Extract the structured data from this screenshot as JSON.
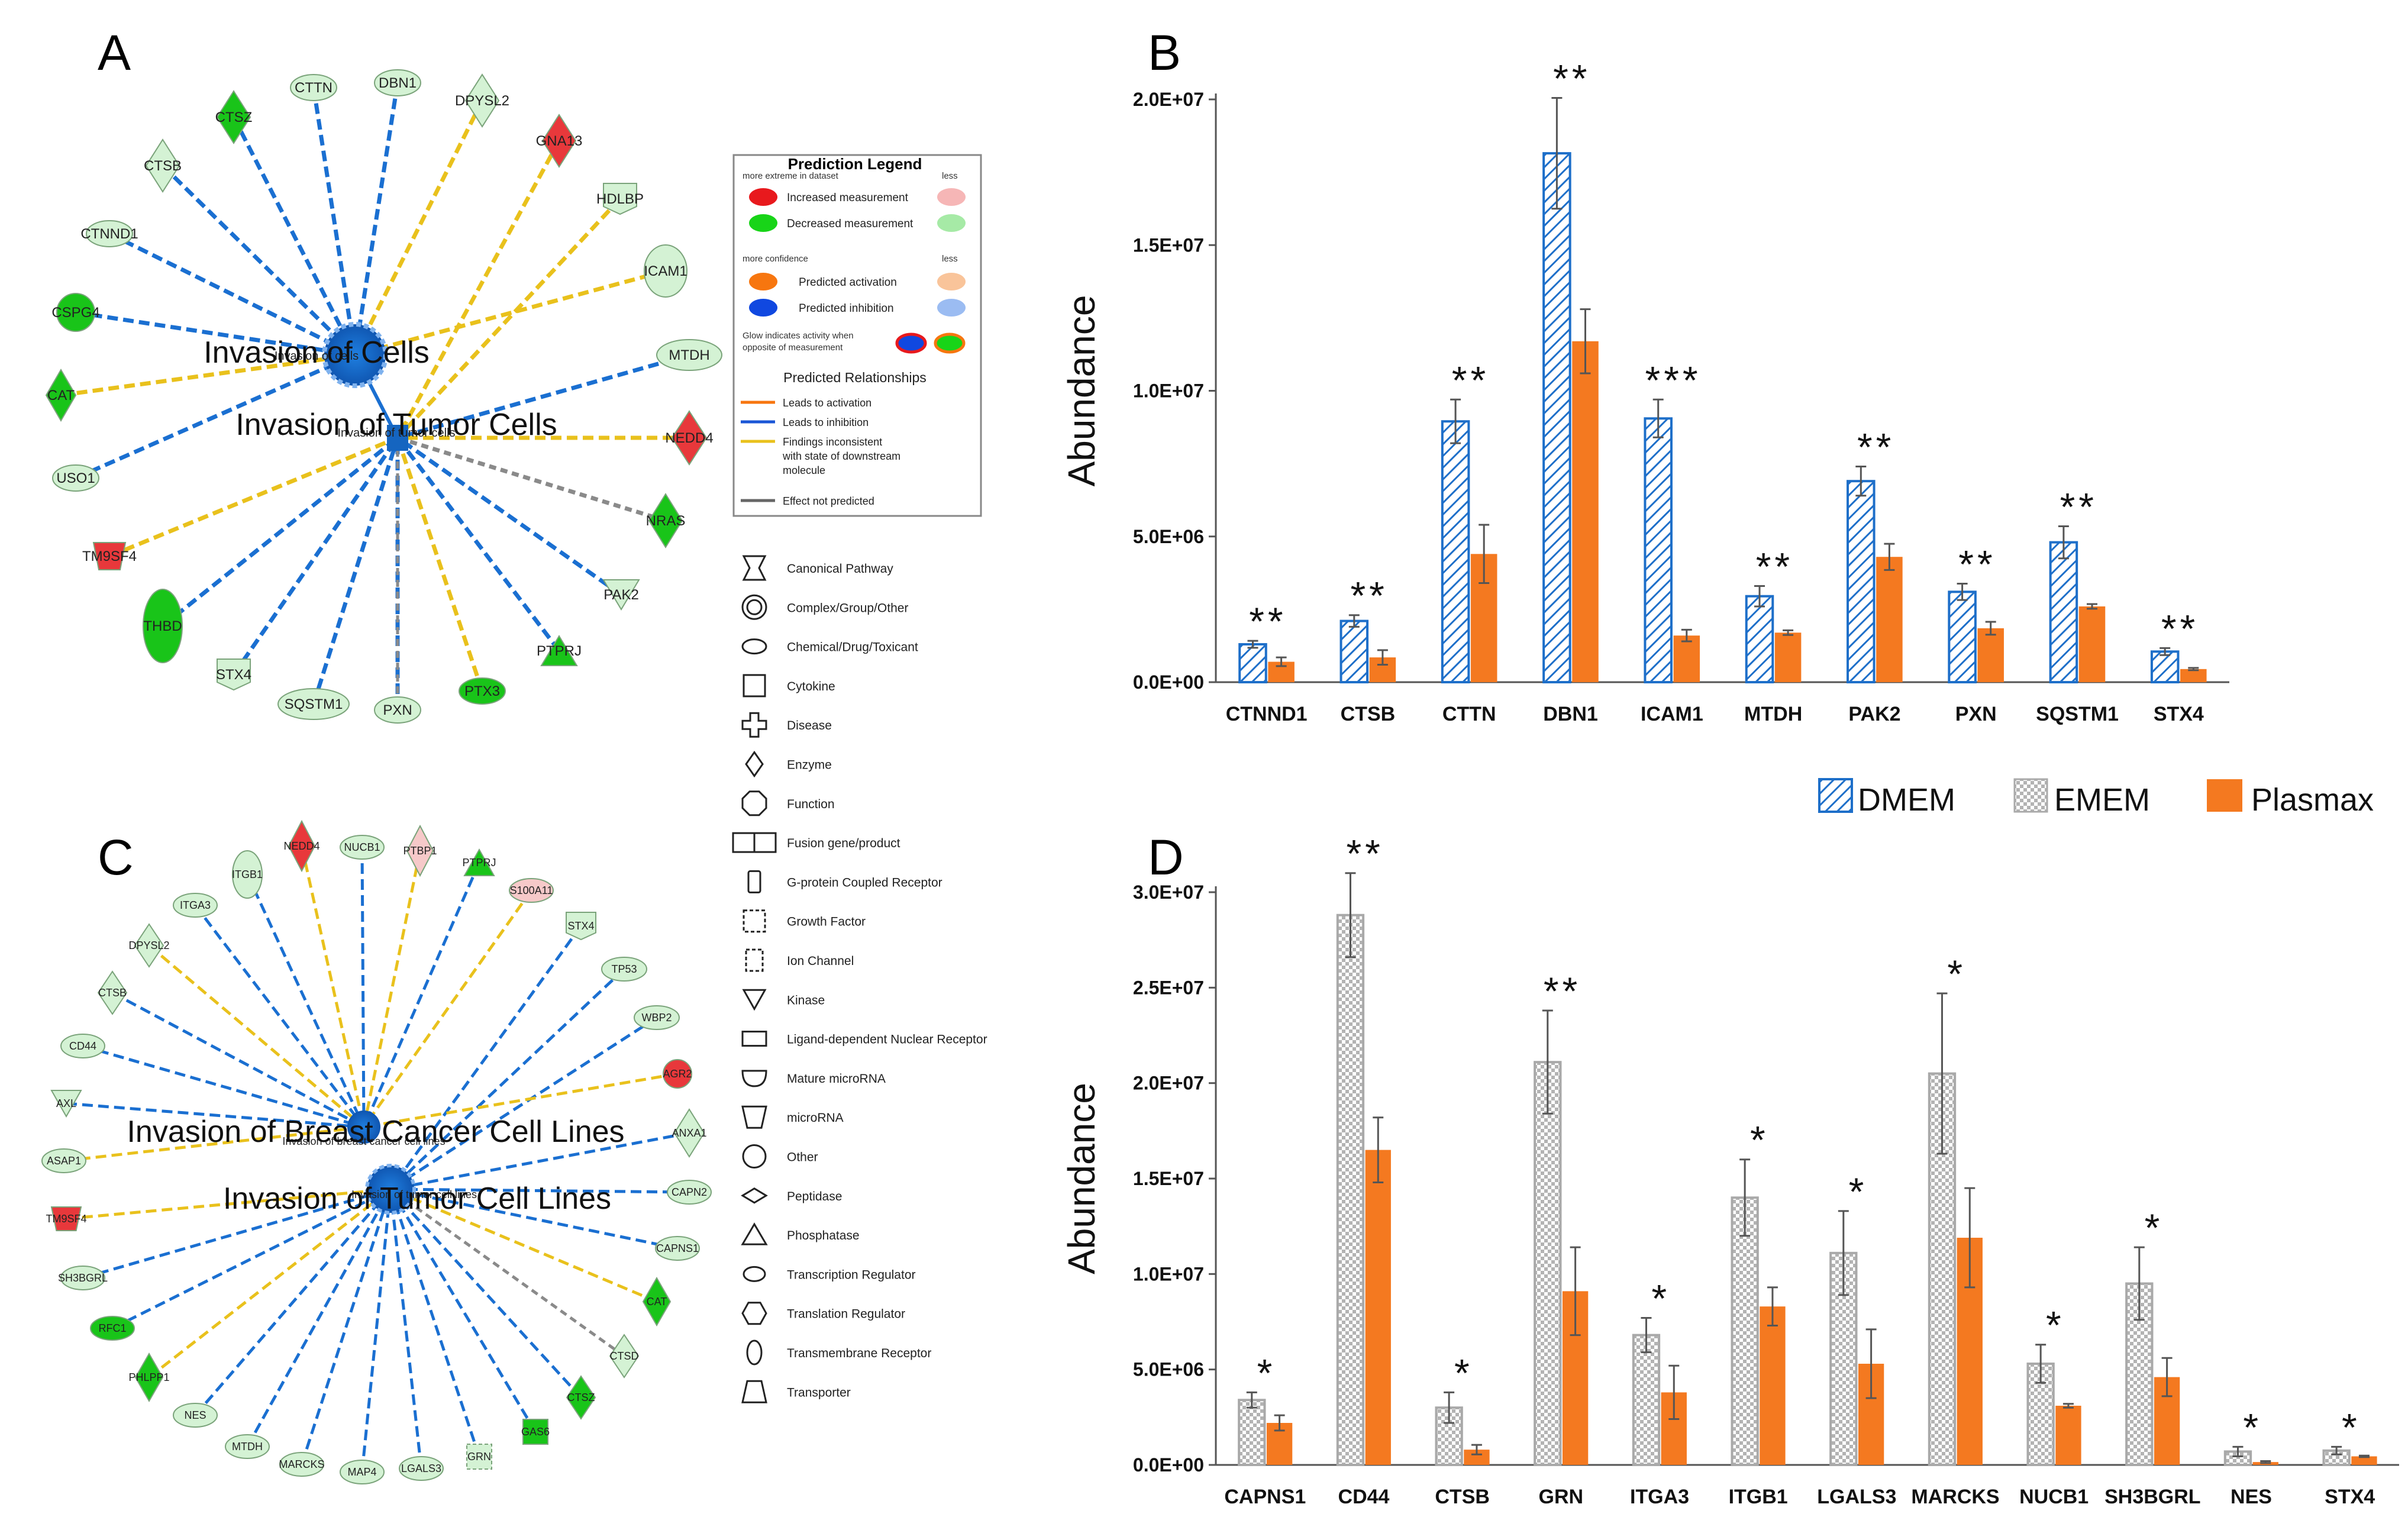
{
  "colors": {
    "increased": "#e8383b",
    "decreased": "#19c419",
    "decreased_light": "#d4f2d4",
    "increased_light": "#f6c9c9",
    "predicted_inhibition": "#1565c0",
    "predicted_activation": "#f07c1e",
    "edge_inhibition": "#1a6fd1",
    "edge_inconsistent": "#e9c11c",
    "edge_not_predicted": "#8a8a8a",
    "dmem": "#1e6fc9",
    "ememe": "#9a9a9a",
    "plasmax": "#f47920"
  },
  "panel_a": {
    "letter": "A",
    "hub1": "Invasion of Cells",
    "hub1_small": "Invasion of cells",
    "hub2": "Invasion of Tumor Cells",
    "hub2_small": "Invasion of tumor cells",
    "nodes": [
      {
        "label": "CTTN",
        "shape": "ellipse",
        "fill": "light-green",
        "edge": "inhibition"
      },
      {
        "label": "DBN1",
        "shape": "ellipse",
        "fill": "light-green",
        "edge": "inhibition"
      },
      {
        "label": "DPYSL2",
        "shape": "diamond",
        "fill": "light-green",
        "edge": "inconsistent"
      },
      {
        "label": "GNA13",
        "shape": "diamond",
        "fill": "red",
        "edge": "inconsistent"
      },
      {
        "label": "HDLBP",
        "shape": "pentagon",
        "fill": "light-green",
        "edge": "inconsistent"
      },
      {
        "label": "ICAM1",
        "shape": "ellipse",
        "fill": "light-green",
        "edge": "inconsistent"
      },
      {
        "label": "MTDH",
        "shape": "ellipse",
        "fill": "light-green",
        "edge": "inhibition"
      },
      {
        "label": "NEDD4",
        "shape": "diamond",
        "fill": "red",
        "edge": "inconsistent"
      },
      {
        "label": "NRAS",
        "shape": "diamond",
        "fill": "green",
        "edge": "not-predicted"
      },
      {
        "label": "PAK2",
        "shape": "triangle-down",
        "fill": "light-green",
        "edge": "inhibition"
      },
      {
        "label": "PTPRJ",
        "shape": "triangle",
        "fill": "green",
        "edge": "inhibition"
      },
      {
        "label": "PTX3",
        "shape": "ellipse",
        "fill": "green",
        "edge": "inconsistent"
      },
      {
        "label": "PXN",
        "shape": "ellipse",
        "fill": "light-green",
        "edge": "inhibition"
      },
      {
        "label": "SQSTM1",
        "shape": "ellipse",
        "fill": "light-green",
        "edge": "inhibition"
      },
      {
        "label": "STX4",
        "shape": "pentagon",
        "fill": "light-green",
        "edge": "inhibition"
      },
      {
        "label": "THBD",
        "shape": "ellipse",
        "fill": "green",
        "edge": "inhibition"
      },
      {
        "label": "TM9SF4",
        "shape": "trapezoid",
        "fill": "red",
        "edge": "inconsistent"
      },
      {
        "label": "USO1",
        "shape": "ellipse",
        "fill": "light-green",
        "edge": "inhibition"
      },
      {
        "label": "CAT",
        "shape": "diamond",
        "fill": "green",
        "edge": "inconsistent"
      },
      {
        "label": "CSPG4",
        "shape": "ellipse",
        "fill": "green",
        "edge": "inhibition"
      },
      {
        "label": "CTNND1",
        "shape": "ellipse",
        "fill": "light-green",
        "edge": "inhibition"
      },
      {
        "label": "CTSB",
        "shape": "diamond",
        "fill": "light-green",
        "edge": "inhibition"
      },
      {
        "label": "CTSZ",
        "shape": "diamond",
        "fill": "green",
        "edge": "inhibition"
      }
    ]
  },
  "panel_c": {
    "letter": "C",
    "hub1": "Invasion of Breast Cancer Cell Lines",
    "hub1_small": "Invasion of breast cancer cell lines",
    "hub2": "Invasion of Tumor Cell Lines",
    "hub2_small": "Invasion of tumor cell lines",
    "nodes": [
      {
        "label": "NEDD4",
        "shape": "diamond",
        "fill": "red",
        "edge": "inconsistent"
      },
      {
        "label": "NUCB1",
        "shape": "ellipse",
        "fill": "light-green",
        "edge": "inhibition"
      },
      {
        "label": "PTBP1",
        "shape": "diamond",
        "fill": "light-red",
        "edge": "inconsistent"
      },
      {
        "label": "PTPRJ",
        "shape": "triangle",
        "fill": "green",
        "edge": "inhibition"
      },
      {
        "label": "S100A11",
        "shape": "ellipse",
        "fill": "light-red",
        "edge": "inconsistent"
      },
      {
        "label": "STX4",
        "shape": "pentagon",
        "fill": "light-green",
        "edge": "inhibition"
      },
      {
        "label": "TP53",
        "shape": "ellipse",
        "fill": "light-green",
        "edge": "inhibition"
      },
      {
        "label": "WBP2",
        "shape": "ellipse",
        "fill": "light-green",
        "edge": "inhibition"
      },
      {
        "label": "AGR2",
        "shape": "ellipse",
        "fill": "red",
        "edge": "inconsistent"
      },
      {
        "label": "ANXA1",
        "shape": "diamond",
        "fill": "light-green",
        "edge": "inhibition"
      },
      {
        "label": "CAPN2",
        "shape": "ellipse",
        "fill": "light-green",
        "edge": "inhibition"
      },
      {
        "label": "CAPNS1",
        "shape": "ellipse",
        "fill": "light-green",
        "edge": "inhibition"
      },
      {
        "label": "CAT",
        "shape": "diamond",
        "fill": "green",
        "edge": "inconsistent"
      },
      {
        "label": "CTSD",
        "shape": "diamond",
        "fill": "light-green",
        "edge": "not-predicted"
      },
      {
        "label": "CTSZ",
        "shape": "diamond",
        "fill": "green",
        "edge": "inhibition"
      },
      {
        "label": "GAS6",
        "shape": "square",
        "fill": "green",
        "edge": "inhibition"
      },
      {
        "label": "GRN",
        "shape": "dashed-square",
        "fill": "light-green",
        "edge": "inhibition"
      },
      {
        "label": "LGALS3",
        "shape": "ellipse",
        "fill": "light-green",
        "edge": "inhibition"
      },
      {
        "label": "MAP4",
        "shape": "ellipse",
        "fill": "light-green",
        "edge": "inhibition"
      },
      {
        "label": "MARCKS",
        "shape": "ellipse",
        "fill": "light-green",
        "edge": "inhibition"
      },
      {
        "label": "MTDH",
        "shape": "ellipse",
        "fill": "light-green",
        "edge": "inhibition"
      },
      {
        "label": "NES",
        "shape": "ellipse",
        "fill": "light-green",
        "edge": "inhibition"
      },
      {
        "label": "PHLPP1",
        "shape": "diamond",
        "fill": "green",
        "edge": "inconsistent"
      },
      {
        "label": "RFC1",
        "shape": "ellipse",
        "fill": "green",
        "edge": "inhibition"
      },
      {
        "label": "SH3BGRL",
        "shape": "ellipse",
        "fill": "light-green",
        "edge": "inhibition"
      },
      {
        "label": "TM9SF4",
        "shape": "trapezoid",
        "fill": "red",
        "edge": "inconsistent"
      },
      {
        "label": "ASAP1",
        "shape": "ellipse",
        "fill": "light-green",
        "edge": "inconsistent"
      },
      {
        "label": "AXL",
        "shape": "triangle-down",
        "fill": "light-green",
        "edge": "inhibition"
      },
      {
        "label": "CD44",
        "shape": "ellipse",
        "fill": "light-green",
        "edge": "inhibition"
      },
      {
        "label": "CTSB",
        "shape": "diamond",
        "fill": "light-green",
        "edge": "inhibition"
      },
      {
        "label": "DPYSL2",
        "shape": "diamond",
        "fill": "light-green",
        "edge": "inconsistent"
      },
      {
        "label": "ITGA3",
        "shape": "ellipse",
        "fill": "light-green",
        "edge": "inhibition"
      },
      {
        "label": "ITGB1",
        "shape": "ellipse",
        "fill": "light-green",
        "edge": "inhibition"
      }
    ]
  },
  "prediction_legend": {
    "title": "Prediction Legend",
    "more_extreme": "more extreme in dataset",
    "less": "less",
    "increased": "Increased measurement",
    "decreased": "Decreased measurement",
    "more_confidence": "more confidence",
    "predicted_activation": "Predicted activation",
    "predicted_inhibition": "Predicted inhibition",
    "glow_note_1": "Glow indicates activity when",
    "glow_note_2": "opposite of measurement",
    "relationships_title": "Predicted Relationships",
    "leads_activation": "Leads to activation",
    "leads_inhibition": "Leads to inhibition",
    "inconsistent_1": "Findings inconsistent",
    "inconsistent_2": "with state of downstream",
    "inconsistent_3": "molecule",
    "not_predicted": "Effect not predicted"
  },
  "shape_legend": [
    "Canonical Pathway",
    "Complex/Group/Other",
    "Chemical/Drug/Toxicant",
    "Cytokine",
    "Disease",
    "Enzyme",
    "Function",
    "Fusion gene/product",
    "G-protein Coupled Receptor",
    "Growth Factor",
    "Ion Channel",
    "Kinase",
    "Ligand-dependent Nuclear Receptor",
    "Mature microRNA",
    "microRNA",
    "Other",
    "Peptidase",
    "Phosphatase",
    "Transcription Regulator",
    "Translation Regulator",
    "Transmembrane Receptor",
    "Transporter"
  ],
  "series_legend": {
    "dmem": "DMEM",
    "ememe": "EMEM",
    "plasmax": "Plasmax"
  },
  "chart_data": [
    {
      "panel": "B",
      "type": "bar",
      "ylabel": "Abundance",
      "ylim": [
        0,
        20000000
      ],
      "yticks": [
        0,
        5000000,
        10000000,
        15000000,
        20000000
      ],
      "ytick_labels": [
        "0.0E+00",
        "5.0E+06",
        "1.0E+07",
        "1.5E+07",
        "2.0E+07"
      ],
      "categories": [
        "CTNND1",
        "CTSB",
        "CTTN",
        "DBN1",
        "ICAM1",
        "MTDH",
        "PAK2",
        "PXN",
        "SQSTM1",
        "STX4"
      ],
      "significance": [
        "**",
        "**",
        "**",
        "**",
        "***",
        "**",
        "**",
        "**",
        "**",
        "**"
      ],
      "series": [
        {
          "name": "DMEM",
          "key": "dmem",
          "pattern": "hatch",
          "values": [
            1300000,
            2100000,
            8950000,
            18150000,
            9050000,
            2950000,
            6900000,
            3100000,
            4800000,
            1050000
          ],
          "errors": [
            120000,
            200000,
            750000,
            1900000,
            650000,
            350000,
            500000,
            280000,
            550000,
            120000
          ]
        },
        {
          "name": "Plasmax",
          "key": "plasmax",
          "pattern": "solid",
          "values": [
            700000,
            850000,
            4400000,
            11700000,
            1600000,
            1700000,
            4300000,
            1850000,
            2600000,
            450000
          ],
          "errors": [
            150000,
            250000,
            1000000,
            1100000,
            200000,
            80000,
            450000,
            220000,
            80000,
            40000
          ]
        }
      ]
    },
    {
      "panel": "D",
      "type": "bar",
      "ylabel": "Abundance",
      "ylim": [
        0,
        30000000
      ],
      "yticks": [
        0,
        5000000,
        10000000,
        15000000,
        20000000,
        25000000,
        30000000
      ],
      "ytick_labels": [
        "0.0E+00",
        "5.0E+06",
        "1.0E+07",
        "1.5E+07",
        "2.0E+07",
        "2.5E+07",
        "3.0E+07"
      ],
      "categories": [
        "CAPNS1",
        "CD44",
        "CTSB",
        "GRN",
        "ITGA3",
        "ITGB1",
        "LGALS3",
        "MARCKS",
        "NUCB1",
        "SH3BGRL",
        "NES",
        "STX4"
      ],
      "significance": [
        "*",
        "**",
        "*",
        "**",
        "*",
        "*",
        "*",
        "*",
        "*",
        "*",
        "*",
        "*"
      ],
      "series": [
        {
          "name": "EMEM",
          "key": "ememe",
          "pattern": "checker",
          "values": [
            3400000,
            28800000,
            3000000,
            21100000,
            6800000,
            14000000,
            11100000,
            20500000,
            5300000,
            9500000,
            700000,
            750000
          ],
          "errors": [
            400000,
            2200000,
            800000,
            2700000,
            900000,
            2000000,
            2200000,
            4200000,
            1000000,
            1900000,
            250000,
            200000
          ]
        },
        {
          "name": "Plasmax",
          "key": "plasmax",
          "pattern": "solid",
          "values": [
            2200000,
            16500000,
            800000,
            9100000,
            3800000,
            8300000,
            5300000,
            11900000,
            3100000,
            4600000,
            150000,
            450000
          ],
          "errors": [
            400000,
            1700000,
            250000,
            2300000,
            1400000,
            1000000,
            1800000,
            2600000,
            100000,
            1000000,
            50000,
            40000
          ]
        }
      ]
    }
  ]
}
